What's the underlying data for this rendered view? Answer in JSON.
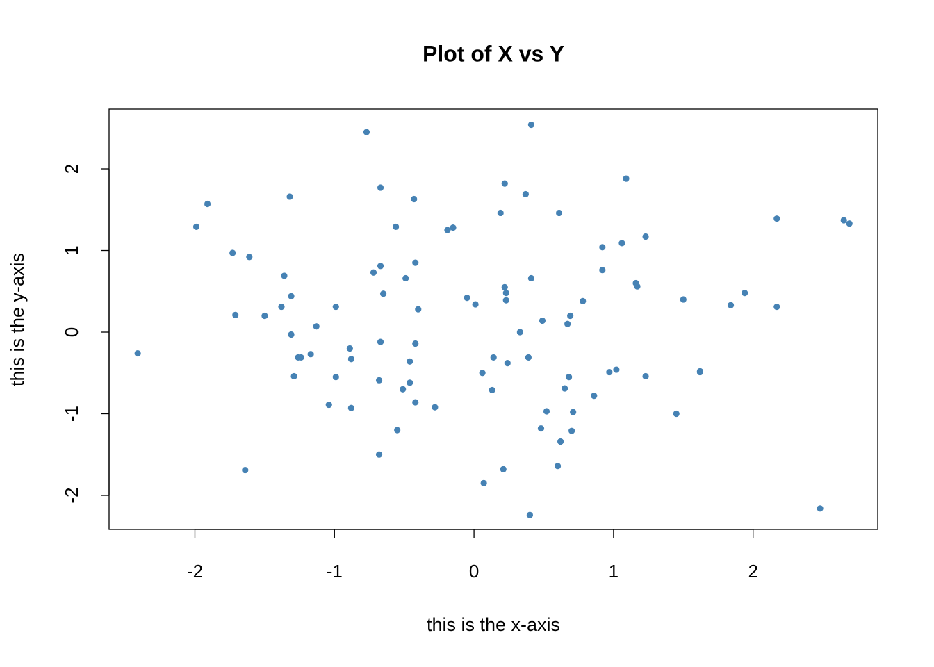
{
  "chart_data": {
    "type": "scatter",
    "title": "Plot of X vs Y",
    "x_label": "this is the x-axis",
    "y_label": "this is the y-axis",
    "color": "#4682b4",
    "x": [
      -2.41,
      -1.99,
      -1.91,
      -1.73,
      -1.71,
      -1.64,
      -1.61,
      -1.5,
      -1.38,
      -1.36,
      -1.32,
      -1.31,
      -1.31,
      -1.29,
      -1.26,
      -1.24,
      -1.17,
      -1.13,
      -1.04,
      -0.99,
      -0.99,
      -0.89,
      -0.88,
      -0.88,
      -0.77,
      -0.72,
      -0.68,
      -0.68,
      -0.67,
      -0.67,
      -0.67,
      -0.65,
      -0.56,
      -0.55,
      -0.51,
      -0.49,
      -0.46,
      -0.46,
      -0.43,
      -0.42,
      -0.42,
      -0.42,
      -0.4,
      -0.28,
      -0.19,
      -0.15,
      -0.05,
      0.01,
      0.06,
      0.07,
      0.13,
      0.14,
      0.19,
      0.21,
      0.22,
      0.22,
      0.23,
      0.23,
      0.24,
      0.33,
      0.37,
      0.39,
      0.4,
      0.41,
      0.41,
      0.49,
      0.48,
      0.52,
      0.6,
      0.61,
      0.62,
      0.65,
      0.67,
      0.68,
      0.69,
      0.7,
      0.71,
      0.78,
      0.86,
      0.92,
      0.92,
      0.97,
      1.02,
      1.06,
      1.09,
      1.16,
      1.17,
      1.23,
      1.23,
      1.45,
      1.5,
      1.62,
      1.62,
      1.84,
      1.94,
      2.17,
      2.17,
      2.48,
      2.65,
      2.69
    ],
    "values": [
      -0.26,
      1.29,
      1.57,
      0.97,
      0.21,
      -1.69,
      0.92,
      0.2,
      0.31,
      0.69,
      1.66,
      -0.03,
      0.44,
      -0.54,
      -0.31,
      -0.31,
      -0.27,
      0.07,
      -0.89,
      0.31,
      -0.55,
      -0.2,
      -0.93,
      -0.33,
      2.45,
      0.73,
      -1.5,
      -0.59,
      1.77,
      0.81,
      -0.12,
      0.47,
      1.29,
      -1.2,
      -0.7,
      0.66,
      -0.36,
      -0.62,
      1.63,
      0.85,
      -0.14,
      -0.86,
      0.28,
      -0.92,
      1.25,
      1.28,
      0.42,
      0.34,
      -0.5,
      -1.85,
      -0.71,
      -0.31,
      1.46,
      -1.68,
      1.82,
      0.55,
      0.48,
      0.39,
      -0.38,
      0.0,
      1.69,
      -0.31,
      -2.24,
      2.54,
      0.66,
      0.14,
      -1.18,
      -0.97,
      -1.64,
      1.46,
      -1.34,
      -0.69,
      0.1,
      -0.55,
      0.2,
      -1.21,
      -0.98,
      0.38,
      -0.78,
      1.04,
      0.76,
      -0.49,
      -0.46,
      1.09,
      1.88,
      0.6,
      0.56,
      1.17,
      -0.54,
      -1.0,
      0.4,
      -0.48,
      -0.49,
      0.33,
      0.48,
      0.31,
      1.39,
      -2.16,
      1.37,
      1.33
    ],
    "xlim": [
      -2.615,
      2.893
    ],
    "ylim": [
      -2.417,
      2.732
    ],
    "xticks": [
      -2,
      -1,
      0,
      1,
      2
    ],
    "yticks": [
      -2,
      -1,
      0,
      1,
      2
    ]
  }
}
